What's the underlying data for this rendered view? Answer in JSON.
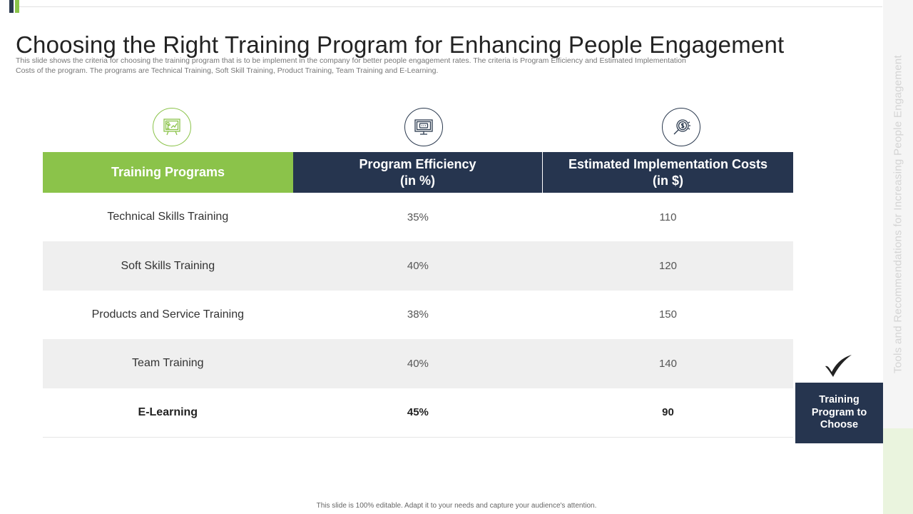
{
  "slide": {
    "title": "Choosing the Right Training Program for Enhancing People Engagement",
    "description": "This slide shows the criteria for choosing the training program that is to be implement in the company for better people engagement rates. The criteria is Program Efficiency and Estimated Implementation Costs of the program. The programs are Technical Training, Soft Skill Training, Product Training, Team Training and E-Learning.",
    "side_label": "Tools and Recommendations for Increasing People Engagement",
    "footer": "This slide is 100% editable. Adapt it to your needs and capture your audience's attention."
  },
  "icons": [
    {
      "name": "training-presentation-icon",
      "color": "#8bc34a"
    },
    {
      "name": "monitor-code-icon",
      "color": "#2b3a4f"
    },
    {
      "name": "dollar-search-icon",
      "color": "#2b3a4f"
    }
  ],
  "table": {
    "headers": {
      "program": "Training Programs",
      "efficiency_line1": "Program Efficiency",
      "efficiency_line2": "(in %)",
      "cost_line1": "Estimated Implementation Costs",
      "cost_line2": "(in $)"
    },
    "rows": [
      {
        "program": "Technical Skills Training",
        "efficiency": "35%",
        "cost": "110"
      },
      {
        "program": "Soft Skills Training",
        "efficiency": "40%",
        "cost": "120"
      },
      {
        "program": "Products and Service Training",
        "efficiency": "38%",
        "cost": "150"
      },
      {
        "program": "Team Training",
        "efficiency": "40%",
        "cost": "140"
      },
      {
        "program": "E-Learning",
        "efficiency": "45%",
        "cost": "90"
      }
    ]
  },
  "choice": {
    "line1": "Training",
    "line2": "Program to",
    "line3": "Choose"
  },
  "colors": {
    "green": "#8bc34a",
    "navy": "#26354f",
    "row_shade": "#efefef"
  }
}
